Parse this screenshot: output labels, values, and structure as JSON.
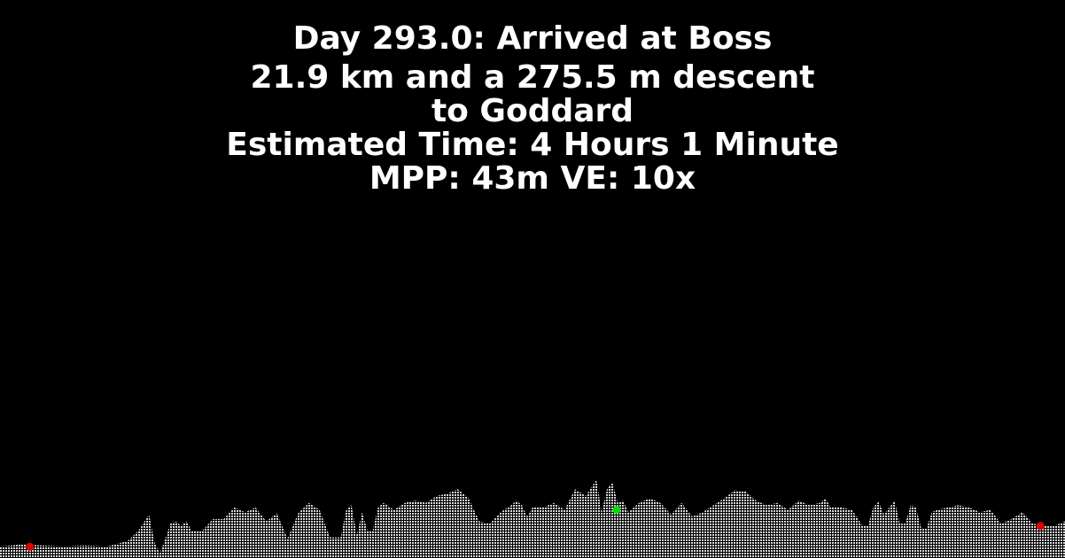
{
  "header": {
    "line1": "Day 293.0: Arrived at Boss",
    "line2": "21.9 km and a 275.5 m descent",
    "line3": "to Goddard",
    "line4": "Estimated Time: 4 Hours 1 Minute",
    "line5": "MPP: 43m VE: 10x"
  },
  "colors": {
    "background": "#000000",
    "text": "#ffffff",
    "terrain": "#d8d8d8",
    "marker_start": "#e00000",
    "marker_end": "#e00000",
    "marker_current": "#00e000"
  },
  "chart_data": {
    "type": "area",
    "title": "",
    "xlabel": "",
    "ylabel": "",
    "x": [
      0,
      0.02,
      0.04,
      0.06,
      0.08,
      0.1,
      0.12,
      0.13,
      0.14,
      0.145,
      0.15,
      0.155,
      0.16,
      0.165,
      0.17,
      0.175,
      0.18,
      0.19,
      0.2,
      0.21,
      0.22,
      0.23,
      0.24,
      0.25,
      0.26,
      0.27,
      0.28,
      0.29,
      0.3,
      0.31,
      0.32,
      0.325,
      0.33,
      0.335,
      0.34,
      0.345,
      0.35,
      0.355,
      0.36,
      0.37,
      0.38,
      0.39,
      0.4,
      0.41,
      0.42,
      0.43,
      0.44,
      0.45,
      0.46,
      0.47,
      0.48,
      0.485,
      0.49,
      0.495,
      0.5,
      0.51,
      0.52,
      0.53,
      0.54,
      0.55,
      0.56,
      0.565,
      0.57,
      0.575,
      0.58,
      0.585,
      0.59,
      0.6,
      0.61,
      0.62,
      0.63,
      0.64,
      0.65,
      0.66,
      0.67,
      0.68,
      0.69,
      0.7,
      0.71,
      0.72,
      0.73,
      0.74,
      0.75,
      0.76,
      0.77,
      0.775,
      0.78,
      0.79,
      0.8,
      0.81,
      0.815,
      0.82,
      0.825,
      0.83,
      0.84,
      0.845,
      0.85,
      0.855,
      0.86,
      0.865,
      0.87,
      0.875,
      0.88,
      0.89,
      0.9,
      0.91,
      0.92,
      0.93,
      0.94,
      0.95,
      0.96,
      0.97,
      0.98,
      0.99,
      1.0
    ],
    "y": [
      0.06,
      0.08,
      0.07,
      0.06,
      0.07,
      0.06,
      0.11,
      0.2,
      0.34,
      0.1,
      0.0,
      0.12,
      0.26,
      0.28,
      0.24,
      0.28,
      0.2,
      0.2,
      0.3,
      0.3,
      0.4,
      0.36,
      0.4,
      0.28,
      0.35,
      0.13,
      0.35,
      0.44,
      0.38,
      0.14,
      0.14,
      0.38,
      0.42,
      0.16,
      0.36,
      0.2,
      0.2,
      0.4,
      0.44,
      0.38,
      0.44,
      0.46,
      0.44,
      0.5,
      0.52,
      0.56,
      0.48,
      0.28,
      0.26,
      0.36,
      0.42,
      0.46,
      0.42,
      0.32,
      0.4,
      0.4,
      0.44,
      0.38,
      0.56,
      0.5,
      0.64,
      0.36,
      0.56,
      0.62,
      0.44,
      0.46,
      0.36,
      0.44,
      0.48,
      0.44,
      0.34,
      0.44,
      0.32,
      0.36,
      0.42,
      0.48,
      0.55,
      0.54,
      0.46,
      0.42,
      0.44,
      0.38,
      0.46,
      0.42,
      0.44,
      0.48,
      0.4,
      0.4,
      0.38,
      0.24,
      0.24,
      0.4,
      0.45,
      0.34,
      0.46,
      0.26,
      0.26,
      0.42,
      0.4,
      0.22,
      0.22,
      0.36,
      0.38,
      0.4,
      0.42,
      0.4,
      0.36,
      0.38,
      0.26,
      0.3,
      0.36,
      0.26,
      0.24,
      0.24,
      0.28
    ],
    "ylim": [
      0,
      1
    ],
    "markers": [
      {
        "name": "start",
        "x": 0.028,
        "y": 0.06,
        "color": "#e00000"
      },
      {
        "name": "current",
        "x": 0.579,
        "y": 0.38,
        "color": "#00e000"
      },
      {
        "name": "end",
        "x": 0.977,
        "y": 0.24,
        "color": "#e00000"
      }
    ],
    "grid": false,
    "legend": "none"
  }
}
